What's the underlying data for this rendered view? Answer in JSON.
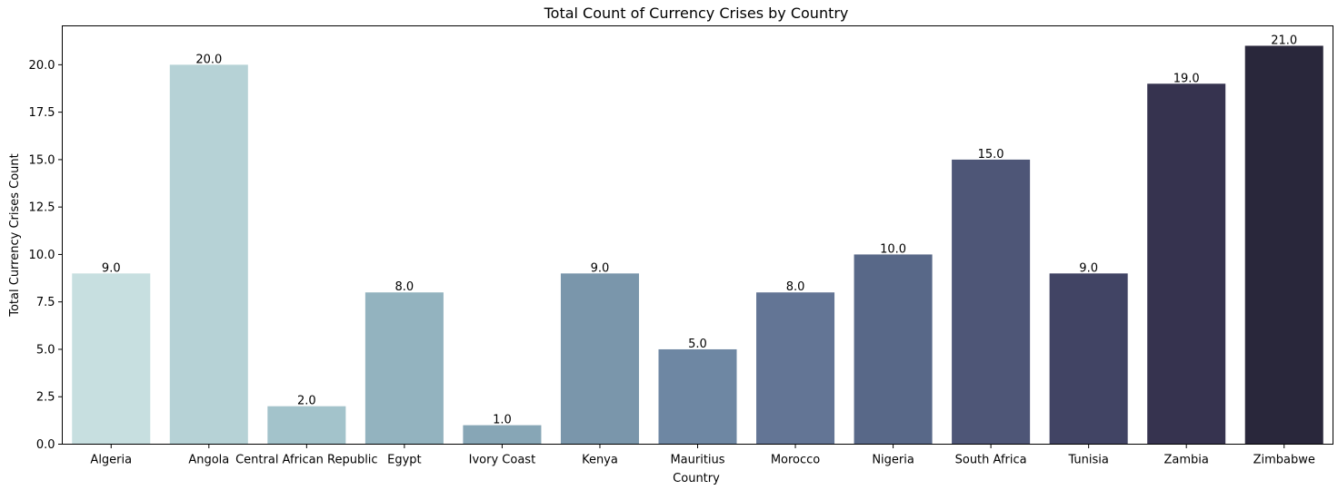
{
  "chart_data": {
    "type": "bar",
    "title": "Total Count of Currency Crises by Country",
    "xlabel": "Country",
    "ylabel": "Total Currency Crises Count",
    "categories": [
      "Algeria",
      "Angola",
      "Central African Republic",
      "Egypt",
      "Ivory Coast",
      "Kenya",
      "Mauritius",
      "Morocco",
      "Nigeria",
      "South Africa",
      "Tunisia",
      "Zambia",
      "Zimbabwe"
    ],
    "values": [
      9,
      20,
      2,
      8,
      1,
      9,
      5,
      8,
      10,
      15,
      9,
      19,
      21
    ],
    "data_labels": [
      "9.0",
      "20.0",
      "2.0",
      "8.0",
      "1.0",
      "9.0",
      "5.0",
      "8.0",
      "10.0",
      "15.0",
      "9.0",
      "19.0",
      "21.0"
    ],
    "ylim": [
      0,
      22.05
    ],
    "yticks": [
      0,
      2.5,
      5,
      7.5,
      10,
      12.5,
      15,
      17.5,
      20
    ],
    "ytick_labels": [
      "0.0",
      "2.5",
      "5.0",
      "7.5",
      "10.0",
      "12.5",
      "15.0",
      "17.5",
      "20.0"
    ],
    "grid": false,
    "colors": [
      "#c7dfe0",
      "#b6d2d6",
      "#a3c3cb",
      "#93b3bf",
      "#87a6b6",
      "#7a96ab",
      "#6e87a3",
      "#637595",
      "#586888",
      "#4e5677",
      "#414464",
      "#36334f",
      "#29273b"
    ]
  }
}
